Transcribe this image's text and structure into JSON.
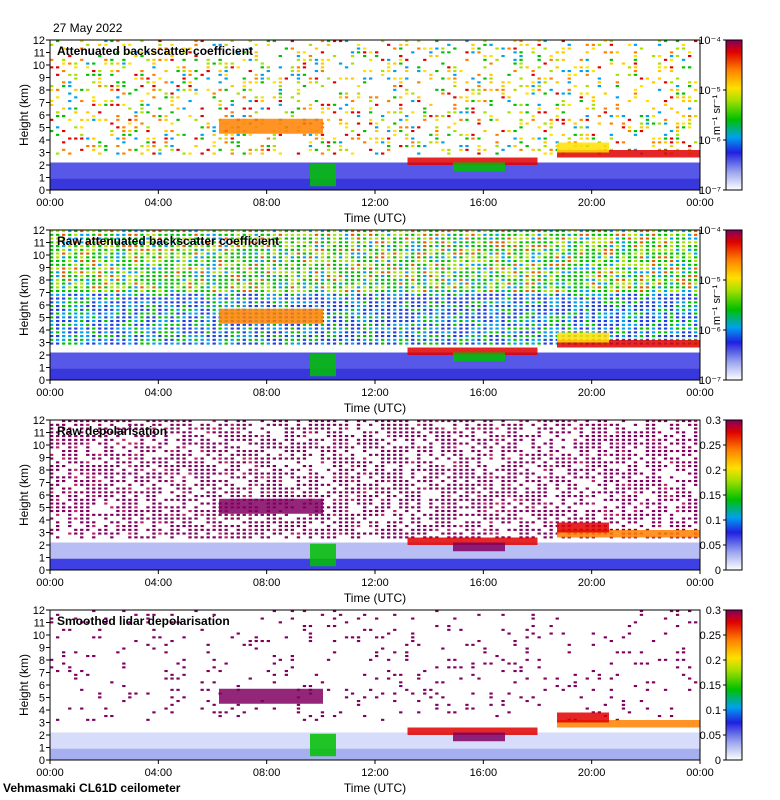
{
  "date": "27 May 2022",
  "footer": "Vehmasmaki CL61D ceilometer",
  "chart_data": [
    {
      "type": "heatmap",
      "title": "Attenuated backscatter coefficient",
      "xlabel": "Time (UTC)",
      "ylabel": "Height (km)",
      "xticks": [
        "00:00",
        "04:00",
        "08:00",
        "12:00",
        "16:00",
        "20:00",
        "00:00"
      ],
      "yticks": [
        "0",
        "1",
        "2",
        "3",
        "4",
        "5",
        "6",
        "7",
        "8",
        "9",
        "10",
        "11",
        "12"
      ],
      "ylim": [
        0,
        12
      ],
      "colorbar": {
        "scale": "log",
        "unit": "m⁻¹ sr⁻¹",
        "ticks": [
          "10⁻⁷",
          "10⁻⁶",
          "10⁻⁵",
          "10⁻⁴"
        ]
      },
      "mode": "backscatter"
    },
    {
      "type": "heatmap",
      "title": "Raw attenuated backscatter coefficient",
      "xlabel": "Time (UTC)",
      "ylabel": "Height (km)",
      "xticks": [
        "00:00",
        "04:00",
        "08:00",
        "12:00",
        "16:00",
        "20:00",
        "00:00"
      ],
      "yticks": [
        "0",
        "1",
        "2",
        "3",
        "4",
        "5",
        "6",
        "7",
        "8",
        "9",
        "10",
        "11",
        "12"
      ],
      "ylim": [
        0,
        12
      ],
      "colorbar": {
        "scale": "log",
        "unit": "m⁻¹ sr⁻¹",
        "ticks": [
          "10⁻⁷",
          "10⁻⁶",
          "10⁻⁵",
          "10⁻⁴"
        ]
      },
      "mode": "raw-backscatter"
    },
    {
      "type": "heatmap",
      "title": "Raw depolarisation",
      "xlabel": "Time (UTC)",
      "ylabel": "Height (km)",
      "xticks": [
        "00:00",
        "04:00",
        "08:00",
        "12:00",
        "16:00",
        "20:00",
        "00:00"
      ],
      "yticks": [
        "0",
        "1",
        "2",
        "3",
        "4",
        "5",
        "6",
        "7",
        "8",
        "9",
        "10",
        "11",
        "12"
      ],
      "ylim": [
        0,
        12
      ],
      "colorbar": {
        "scale": "linear",
        "unit": "",
        "ticks": [
          "0",
          "0.05",
          "0.1",
          "0.15",
          "0.2",
          "0.25",
          "0.3"
        ]
      },
      "mode": "raw-depol"
    },
    {
      "type": "heatmap",
      "title": "Smoothed lidar depolarisation",
      "xlabel": "Time (UTC)",
      "ylabel": "Height (km)",
      "xticks": [
        "00:00",
        "04:00",
        "08:00",
        "12:00",
        "16:00",
        "20:00",
        "00:00"
      ],
      "yticks": [
        "0",
        "1",
        "2",
        "3",
        "4",
        "5",
        "6",
        "7",
        "8",
        "9",
        "10",
        "11",
        "12"
      ],
      "ylim": [
        0,
        12
      ],
      "colorbar": {
        "scale": "linear",
        "unit": "",
        "ticks": [
          "0",
          "0.05",
          "0.1",
          "0.15",
          "0.2",
          "0.25",
          "0.3"
        ]
      },
      "mode": "smooth-depol"
    }
  ]
}
